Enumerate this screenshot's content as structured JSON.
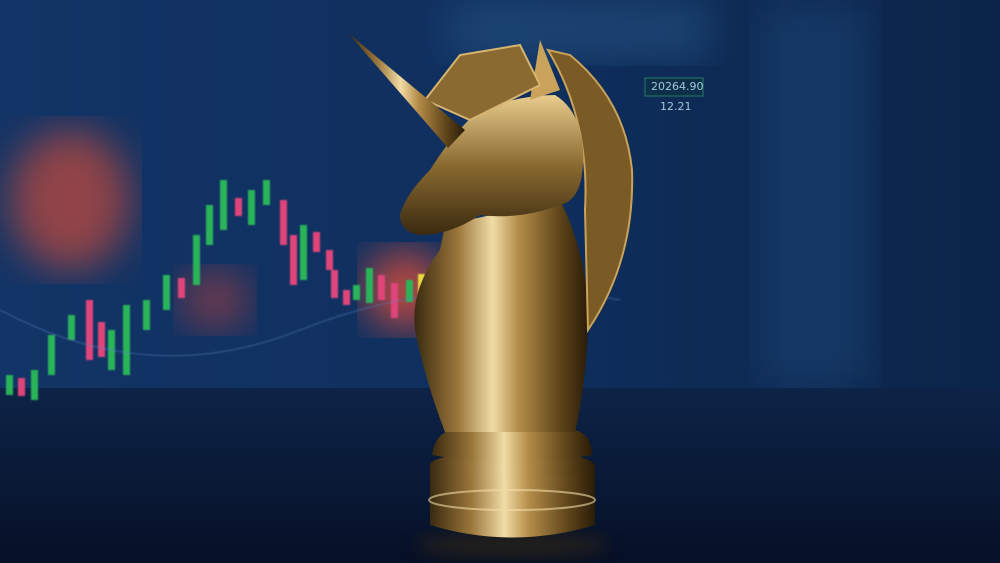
{
  "screen_labels": [
    "20264.90",
    "12.21"
  ]
}
